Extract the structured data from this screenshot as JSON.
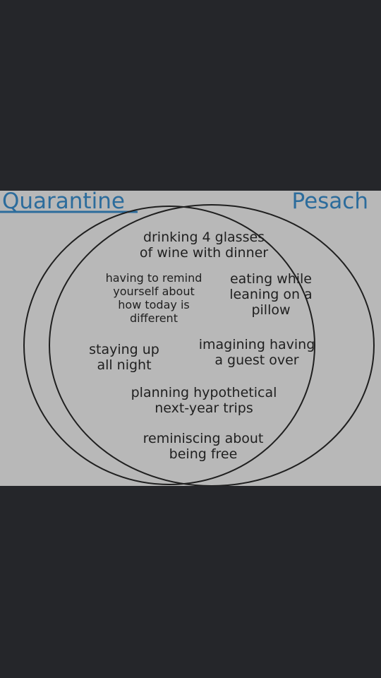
{
  "diagram": {
    "sets": {
      "left": "Quarantine",
      "right": "Pesach"
    },
    "shared_items": [
      "drinking 4 glasses\nof wine with dinner",
      "having to remind\nyourself about\nhow today is\ndifferent",
      "eating while\nleaning on a\npillow",
      "staying up\nall night",
      "imagining having\na guest over",
      "planning hypothetical\nnext-year trips",
      "reminiscing about\nbeing free"
    ],
    "colors": {
      "background": "#25262a",
      "panel": "#b8b8b8",
      "set_label": "#2c6c9c",
      "outline": "#1f1f1f",
      "text": "#1f1f1f"
    }
  }
}
